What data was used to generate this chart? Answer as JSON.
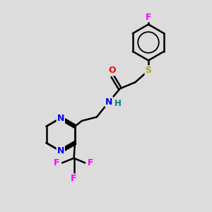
{
  "background_color": "#dcdcdc",
  "atom_colors": {
    "N": "#0000ee",
    "O": "#ff0000",
    "F": "#ff00ff",
    "S": "#aaaa00",
    "H": "#008080",
    "C": "#000000"
  },
  "bond_color": "#000000",
  "bond_width": 1.8,
  "figsize": [
    3.0,
    3.0
  ],
  "dpi": 100
}
